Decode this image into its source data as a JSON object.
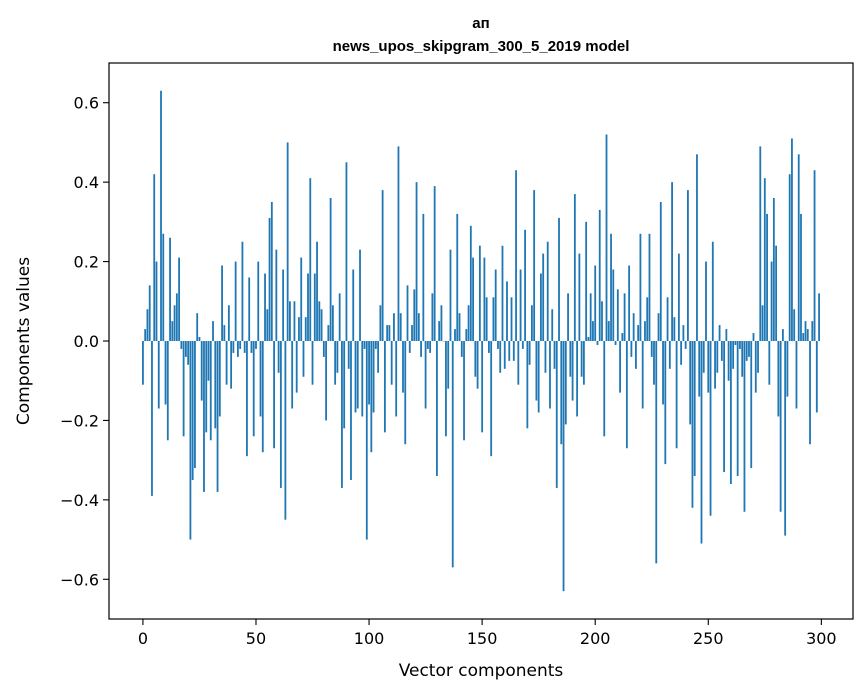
{
  "chart_data": {
    "type": "bar",
    "title_line1": "ап",
    "title_line2": "news_upos_skipgram_300_5_2019 model",
    "xlabel": "Vector components",
    "ylabel": "Components values",
    "xlim": [
      -15,
      314
    ],
    "ylim": [
      -0.7,
      0.7
    ],
    "x_ticks": [
      0,
      50,
      100,
      150,
      200,
      250,
      300
    ],
    "x_tick_labels": [
      "0",
      "50",
      "100",
      "150",
      "200",
      "250",
      "300"
    ],
    "y_ticks": [
      -0.6,
      -0.4,
      -0.2,
      0.0,
      0.2,
      0.4,
      0.6
    ],
    "y_tick_labels": [
      "−0.6",
      "−0.4",
      "−0.2",
      "0.0",
      "0.2",
      "0.4",
      "0.6"
    ],
    "grid": false,
    "bar_color": "#1f77b4",
    "values": [
      -0.11,
      0.03,
      0.08,
      0.14,
      -0.39,
      0.42,
      0.2,
      -0.17,
      0.63,
      0.27,
      -0.16,
      -0.25,
      0.26,
      0.05,
      0.09,
      0.12,
      0.21,
      -0.02,
      -0.24,
      -0.04,
      -0.06,
      -0.5,
      -0.35,
      -0.32,
      0.07,
      0.01,
      -0.15,
      -0.38,
      -0.23,
      -0.1,
      -0.25,
      0.05,
      -0.22,
      -0.38,
      -0.19,
      0.19,
      0.04,
      -0.11,
      0.09,
      -0.12,
      -0.03,
      0.2,
      -0.04,
      -0.02,
      0.25,
      -0.03,
      -0.29,
      0.16,
      -0.03,
      -0.24,
      -0.02,
      0.2,
      -0.19,
      -0.28,
      0.17,
      0.08,
      0.31,
      0.35,
      -0.27,
      0.23,
      -0.08,
      -0.37,
      0.18,
      -0.45,
      0.5,
      0.1,
      -0.17,
      0.1,
      -0.13,
      0.06,
      0.21,
      -0.09,
      0.06,
      0.17,
      0.41,
      -0.11,
      0.17,
      0.25,
      0.1,
      0.08,
      -0.04,
      -0.2,
      0.04,
      0.36,
      0.09,
      -0.11,
      -0.08,
      0.12,
      -0.37,
      -0.22,
      0.45,
      -0.07,
      -0.35,
      0.18,
      -0.18,
      -0.17,
      0.23,
      -0.19,
      -0.02,
      -0.5,
      -0.16,
      -0.28,
      -0.18,
      -0.02,
      -0.08,
      0.09,
      0.38,
      -0.23,
      0.04,
      0.04,
      -0.11,
      0.07,
      -0.19,
      0.49,
      0.07,
      -0.13,
      -0.26,
      0.14,
      -0.03,
      0.04,
      0.13,
      0.4,
      0.07,
      -0.04,
      0.32,
      -0.17,
      -0.02,
      -0.03,
      0.12,
      0.39,
      -0.34,
      0.05,
      0.09,
      0.0,
      -0.24,
      -0.12,
      0.23,
      -0.57,
      0.03,
      0.32,
      0.07,
      -0.04,
      -0.25,
      0.03,
      0.09,
      0.29,
      0.21,
      -0.09,
      -0.12,
      0.24,
      -0.23,
      0.21,
      0.11,
      -0.03,
      -0.29,
      0.11,
      0.18,
      -0.02,
      -0.08,
      0.24,
      -0.07,
      0.15,
      -0.05,
      0.11,
      -0.05,
      0.43,
      -0.11,
      0.18,
      -0.02,
      0.28,
      -0.22,
      -0.06,
      0.09,
      0.38,
      -0.15,
      -0.18,
      0.17,
      0.22,
      -0.08,
      0.25,
      -0.17,
      0.08,
      -0.07,
      -0.37,
      0.31,
      -0.26,
      -0.63,
      -0.21,
      0.12,
      -0.09,
      -0.15,
      0.37,
      -0.19,
      0.22,
      -0.09,
      -0.11,
      0.3,
      0.01,
      0.12,
      0.05,
      0.19,
      -0.01,
      0.33,
      0.1,
      -0.24,
      0.52,
      0.05,
      0.27,
      0.18,
      -0.01,
      0.13,
      -0.13,
      0.02,
      0.12,
      -0.27,
      0.19,
      -0.04,
      0.07,
      -0.07,
      0.04,
      0.27,
      -0.17,
      0.05,
      0.11,
      0.27,
      -0.04,
      -0.11,
      -0.56,
      0.07,
      0.35,
      -0.16,
      -0.31,
      0.11,
      -0.07,
      0.4,
      0.06,
      -0.27,
      0.22,
      -0.06,
      0.04,
      -0.02,
      0.38,
      -0.21,
      -0.42,
      -0.34,
      0.47,
      -0.14,
      -0.51,
      -0.08,
      0.2,
      -0.13,
      -0.44,
      0.25,
      -0.12,
      -0.08,
      0.04,
      -0.05,
      -0.33,
      0.03,
      -0.1,
      -0.36,
      -0.07,
      -0.01,
      -0.34,
      -0.02,
      -0.09,
      -0.43,
      -0.05,
      -0.04,
      -0.32,
      0.02,
      -0.13,
      -0.08,
      0.49,
      0.09,
      0.41,
      0.32,
      -0.11,
      0.2,
      0.36,
      0.24,
      -0.19,
      -0.43,
      0.03,
      -0.49,
      -0.14,
      0.42,
      0.51,
      0.08,
      -0.17,
      0.47,
      0.32,
      0.02,
      0.05,
      0.03,
      -0.26,
      0.05,
      0.43,
      -0.18,
      0.12
    ]
  }
}
